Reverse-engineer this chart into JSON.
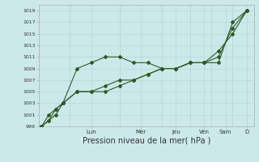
{
  "bg_color": "#cce9e9",
  "grid_color": "#aad4d4",
  "line_color": "#2d5a27",
  "marker_color": "#2d5a27",
  "ylim": [
    999,
    1020
  ],
  "yticks": [
    999,
    1001,
    1003,
    1005,
    1007,
    1009,
    1011,
    1013,
    1015,
    1017,
    1019
  ],
  "xlabel": "Pression niveau de la mer( hPa )",
  "xlabel_fontsize": 7,
  "day_labels": [
    "Lun",
    "Mer",
    "Jeu",
    "Ven",
    "Sam",
    "D"
  ],
  "day_tick_positions": [
    3.5,
    7.0,
    9.5,
    11.5,
    13.0,
    14.5
  ],
  "vline_positions": [
    2.0,
    5.5,
    8.5,
    10.5,
    12.0,
    13.5
  ],
  "series1_x": [
    0,
    0.5,
    1.0,
    1.5,
    2.5,
    3.5,
    4.5,
    5.5,
    6.5,
    7.5,
    8.5,
    9.5,
    10.5,
    11.5,
    12.5,
    13.5,
    14.5
  ],
  "series1_y": [
    999,
    1001,
    1002,
    1003,
    1009,
    1010,
    1011,
    1011,
    1010,
    1010,
    1009,
    1009,
    1010,
    1010,
    1010,
    1017,
    1019
  ],
  "series2_x": [
    0,
    0.5,
    1.0,
    1.5,
    2.5,
    3.5,
    4.5,
    5.5,
    6.5,
    7.5,
    8.5,
    9.5,
    10.5,
    11.5,
    12.5,
    13.5,
    14.5
  ],
  "series2_y": [
    999,
    1000,
    1002,
    1003,
    1005,
    1005,
    1006,
    1007,
    1007,
    1008,
    1009,
    1009,
    1010,
    1010,
    1011,
    1016,
    1019
  ],
  "series3_x": [
    0,
    0.5,
    1.0,
    1.5,
    2.5,
    3.5,
    4.5,
    5.5,
    6.5,
    7.5,
    8.5,
    9.5,
    10.5,
    11.5,
    12.5,
    13.5,
    14.5
  ],
  "series3_y": [
    999,
    1000,
    1001,
    1003,
    1005,
    1005,
    1005,
    1006,
    1007,
    1008,
    1009,
    1009,
    1010,
    1010,
    1012,
    1015,
    1019
  ],
  "xlim": [
    -0.2,
    15.0
  ]
}
